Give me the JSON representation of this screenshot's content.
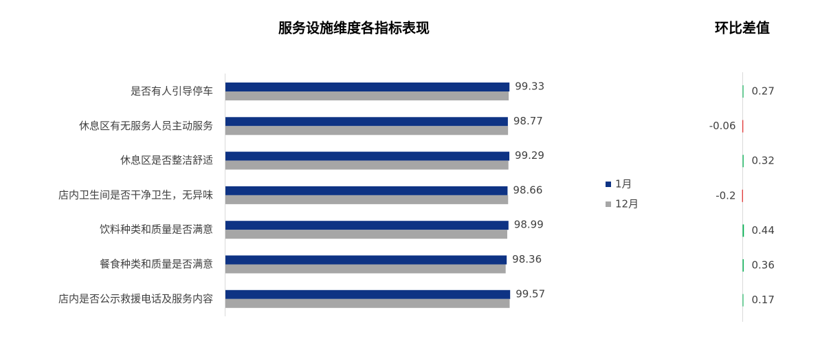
{
  "chart_data": [
    {
      "type": "hbar",
      "title": "服务设施维度各指标表现",
      "categories": [
        "是否有人引导停车",
        "休息区有无服务人员主动服务",
        "休息区是否整洁舒适",
        "店内卫生间是否干净卫生，无异味",
        "饮料种类和质量是否满意",
        "餐食种类和质量是否满意",
        "店内是否公示救援电话及服务内容"
      ],
      "series": [
        {
          "name": "1月",
          "color": "#0e3384",
          "values": [
            99.33,
            98.77,
            99.29,
            98.66,
            98.99,
            98.36,
            99.57
          ]
        },
        {
          "name": "12月",
          "color": "#a6a6a6",
          "values": [
            99.06,
            98.83,
            98.97,
            98.86,
            98.55,
            98.0,
            99.4
          ]
        }
      ],
      "xlim": [
        0,
        100
      ],
      "legend": "right"
    },
    {
      "type": "diverging",
      "title": "环比差值",
      "values": [
        0.27,
        -0.06,
        0.32,
        -0.2,
        0.44,
        0.36,
        0.17
      ],
      "positive_color": "#00b050",
      "negative_color": "#e00000",
      "xlim": [
        -10,
        10
      ]
    }
  ]
}
